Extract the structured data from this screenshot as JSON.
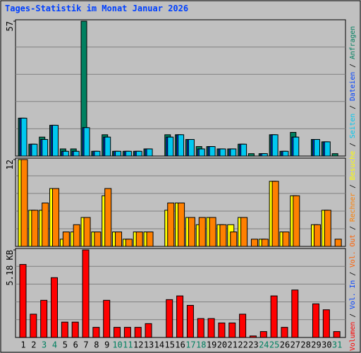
{
  "separator": " / ",
  "chart_data": [
    {
      "type": "bar",
      "title": "Tages-Statistik im Monat Januar 2026",
      "legend_reverse": true,
      "categories": [
        "1",
        "2",
        "3",
        "4",
        "5",
        "6",
        "7",
        "8",
        "9",
        "10",
        "11",
        "12",
        "13",
        "14",
        "15",
        "16",
        "17",
        "18",
        "19",
        "20",
        "21",
        "22",
        "23",
        "24",
        "25",
        "26",
        "27",
        "28",
        "29",
        "30",
        "31"
      ],
      "ylim": [
        0,
        57
      ],
      "yticks": [
        57
      ],
      "series": [
        {
          "name": "Anfragen",
          "color": "#008060",
          "values": [
            16,
            5,
            8,
            13,
            3,
            3,
            57,
            2,
            9,
            2,
            2,
            2,
            3,
            0,
            9,
            9,
            7,
            4,
            4,
            3,
            3,
            5,
            1,
            1,
            9,
            2,
            10,
            0,
            7,
            6,
            1
          ]
        },
        {
          "name": "Dateien",
          "color": "#0040ff",
          "values": [
            16,
            5,
            7,
            13,
            2,
            2,
            12,
            2,
            8,
            2,
            2,
            2,
            3,
            0,
            8,
            9,
            7,
            3,
            4,
            3,
            3,
            5,
            0,
            1,
            9,
            2,
            8,
            0,
            7,
            6,
            0
          ]
        },
        {
          "name": "Seiten",
          "color": "#00c8f0",
          "values": [
            16,
            5,
            7,
            13,
            2,
            2,
            12,
            2,
            8,
            2,
            2,
            2,
            3,
            0,
            8,
            9,
            7,
            3,
            4,
            3,
            3,
            5,
            0,
            1,
            9,
            2,
            8,
            0,
            7,
            6,
            0
          ]
        }
      ]
    },
    {
      "type": "bar",
      "legend_reverse": true,
      "categories": [
        "1",
        "2",
        "3",
        "4",
        "5",
        "6",
        "7",
        "8",
        "9",
        "10",
        "11",
        "12",
        "13",
        "14",
        "15",
        "16",
        "17",
        "18",
        "19",
        "20",
        "21",
        "22",
        "23",
        "24",
        "25",
        "26",
        "27",
        "28",
        "29",
        "30",
        "31"
      ],
      "ylim": [
        0,
        12
      ],
      "yticks": [
        12
      ],
      "series": [
        {
          "name": "Besuche",
          "color": "#ffff00",
          "values": [
            12,
            5,
            5,
            8,
            1,
            2,
            4,
            2,
            7,
            2,
            1,
            2,
            2,
            0,
            5,
            6,
            4,
            3,
            4,
            3,
            3,
            4,
            0,
            1,
            9,
            2,
            7,
            0,
            3,
            5,
            0
          ]
        },
        {
          "name": "Rechner",
          "color": "#ff8000",
          "values": [
            12,
            5,
            6,
            8,
            2,
            3,
            4,
            2,
            8,
            2,
            1,
            2,
            2,
            0,
            6,
            6,
            4,
            4,
            4,
            3,
            2,
            4,
            1,
            1,
            9,
            2,
            7,
            0,
            3,
            5,
            1
          ]
        }
      ]
    },
    {
      "type": "bar",
      "legend_reverse": false,
      "categories": [
        "1",
        "2",
        "3",
        "4",
        "5",
        "6",
        "7",
        "8",
        "9",
        "10",
        "11",
        "12",
        "13",
        "14",
        "15",
        "16",
        "17",
        "18",
        "19",
        "20",
        "21",
        "22",
        "23",
        "24",
        "25",
        "26",
        "27",
        "28",
        "29",
        "30",
        "31"
      ],
      "category_colors": [
        "#000000",
        "#000000",
        "#008060",
        "#008060",
        "#000000",
        "#000000",
        "#000000",
        "#000000",
        "#000000",
        "#008060",
        "#008060",
        "#000000",
        "#000000",
        "#000000",
        "#000000",
        "#000000",
        "#008060",
        "#008060",
        "#000000",
        "#000000",
        "#000000",
        "#000000",
        "#000000",
        "#008060",
        "#008060",
        "#000000",
        "#000000",
        "#000000",
        "#000000",
        "#000000",
        "#008060"
      ],
      "ylim": [
        0,
        5.18
      ],
      "yticks": [
        {
          "value": 5.18,
          "label": "5.18 KB"
        }
      ],
      "series": [
        {
          "name": "Volumen",
          "color": "#ff0000",
          "values": [
            4.32,
            1.38,
            2.2,
            3.54,
            0.91,
            0.91,
            5.18,
            0.6,
            2.2,
            0.6,
            0.6,
            0.6,
            0.82,
            0,
            2.24,
            2.46,
            1.9,
            1.12,
            1.12,
            0.86,
            0.86,
            1.38,
            0.09,
            0.35,
            2.46,
            0.6,
            2.81,
            0,
            1.99,
            1.64,
            0.35
          ]
        },
        {
          "name": "Vol. In",
          "color": "#0040ff",
          "values": [
            null,
            null,
            null,
            null,
            null,
            null,
            null,
            null,
            null,
            null,
            null,
            null,
            null,
            null,
            null,
            null,
            null,
            null,
            null,
            null,
            null,
            null,
            null,
            null,
            null,
            null,
            null,
            null,
            null,
            null,
            null
          ]
        },
        {
          "name": "Vol. Out",
          "color": "#ff6000",
          "values": [
            null,
            null,
            null,
            null,
            null,
            null,
            null,
            null,
            null,
            null,
            null,
            null,
            null,
            null,
            null,
            null,
            null,
            null,
            null,
            null,
            null,
            null,
            null,
            null,
            null,
            null,
            null,
            null,
            null,
            null,
            null
          ]
        }
      ]
    }
  ]
}
